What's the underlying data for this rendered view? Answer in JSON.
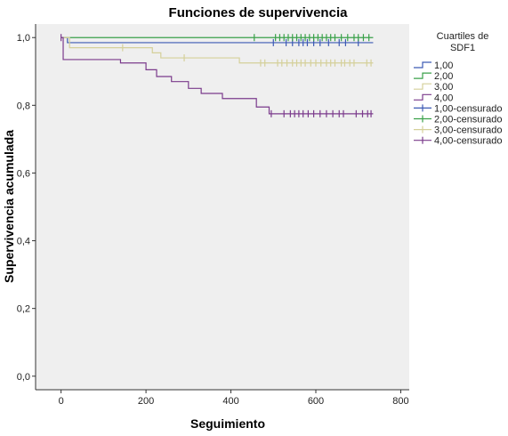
{
  "chart_data": {
    "type": "line",
    "title": "Funciones de supervivencia",
    "xlabel": "Seguimiento",
    "ylabel": "Supervivencia acumulada",
    "xlim": [
      -60,
      820
    ],
    "ylim": [
      -0.04,
      1.04
    ],
    "xticks": [
      0,
      200,
      400,
      600,
      800
    ],
    "xtick_labels": [
      "0",
      "200",
      "400",
      "600",
      "800"
    ],
    "yticks": [
      0.0,
      0.2,
      0.4,
      0.6,
      0.8,
      1.0
    ],
    "ytick_labels": [
      "0,0",
      "0,2",
      "0,4",
      "0,6",
      "0,8",
      "1,0"
    ],
    "grid": false,
    "legend_title_lines": [
      "Cuartiles de",
      "SDF1"
    ],
    "legend_position": "right",
    "series": [
      {
        "name": "1,00",
        "censored_name": "1,00-censurado",
        "color": "#3c5ab4",
        "steps": [
          [
            0,
            1.0
          ],
          [
            15,
            0.985
          ],
          [
            735,
            0.985
          ]
        ],
        "censored_x": [
          500,
          530,
          545,
          560,
          570,
          580,
          595,
          610,
          630,
          655,
          670,
          700
        ]
      },
      {
        "name": "2,00",
        "censored_name": "2,00-censurado",
        "color": "#3aa14a",
        "steps": [
          [
            0,
            1.0
          ],
          [
            735,
            1.0
          ]
        ],
        "censored_x": [
          455,
          505,
          515,
          525,
          535,
          545,
          555,
          565,
          575,
          585,
          595,
          605,
          615,
          625,
          635,
          645,
          660,
          675,
          690,
          700,
          712,
          725
        ]
      },
      {
        "name": "3,00",
        "censored_name": "3,00-censurado",
        "color": "#d5d09a",
        "steps": [
          [
            0,
            1.0
          ],
          [
            20,
            0.97
          ],
          [
            215,
            0.955
          ],
          [
            235,
            0.94
          ],
          [
            420,
            0.925
          ],
          [
            735,
            0.925
          ]
        ],
        "censored_x": [
          145,
          290,
          470,
          480,
          510,
          520,
          532,
          545,
          555,
          565,
          575,
          588,
          600,
          612,
          625,
          635,
          645,
          660,
          668,
          680,
          690,
          720,
          730
        ]
      },
      {
        "name": "4,00",
        "censored_name": "4,00-censurado",
        "color": "#7b3b8c",
        "steps": [
          [
            0,
            1.0
          ],
          [
            5,
            0.935
          ],
          [
            140,
            0.925
          ],
          [
            200,
            0.905
          ],
          [
            225,
            0.885
          ],
          [
            260,
            0.87
          ],
          [
            300,
            0.85
          ],
          [
            330,
            0.835
          ],
          [
            380,
            0.82
          ],
          [
            460,
            0.795
          ],
          [
            490,
            0.775
          ],
          [
            735,
            0.775
          ]
        ],
        "censored_x": [
          0,
          495,
          525,
          540,
          550,
          560,
          570,
          582,
          595,
          610,
          625,
          640,
          655,
          665,
          695,
          710,
          722,
          730
        ]
      }
    ]
  }
}
